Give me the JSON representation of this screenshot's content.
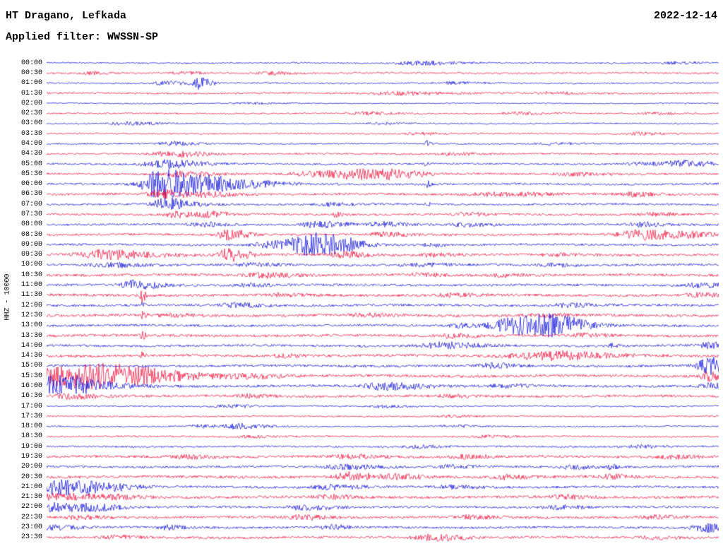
{
  "header": {
    "station": "HT Dragano, Lefkada",
    "date": "2022-12-14",
    "filter": "Applied filter: WWSSN-SP"
  },
  "y_axis": {
    "channel_label": "HHZ - 10000"
  },
  "colors": {
    "blue": "#0000dd",
    "red": "#f20030",
    "background": "#ffffff",
    "text": "#000000"
  },
  "chart_data": {
    "type": "line",
    "subtype": "helicorder-seismogram",
    "title": "HT Dragano, Lefkada",
    "date": "2022-12-14",
    "filter": "WWSSN-SP",
    "channel": "HHZ - 10000",
    "minutes_per_row": 30,
    "row_count": 48,
    "legend_position": "none",
    "grid": false,
    "rows": [
      {
        "label": "00:00",
        "color": "blue",
        "noise": 1.0,
        "events": [
          [
            0.55,
            2.5,
            6
          ],
          [
            0.93,
            1.5,
            4
          ]
        ]
      },
      {
        "label": "00:30",
        "color": "red",
        "noise": 1.1,
        "events": [
          [
            0.065,
            3,
            2
          ],
          [
            0.2,
            2,
            3
          ],
          [
            0.33,
            1.8,
            4
          ]
        ]
      },
      {
        "label": "01:00",
        "color": "blue",
        "noise": 1.0,
        "events": [
          [
            0.175,
            3,
            3
          ],
          [
            0.225,
            8,
            2
          ],
          [
            0.6,
            1.5,
            5
          ]
        ]
      },
      {
        "label": "01:30",
        "color": "red",
        "noise": 1.2,
        "events": [
          [
            0.52,
            2,
            8
          ],
          [
            0.75,
            1.5,
            5
          ]
        ]
      },
      {
        "label": "02:00",
        "color": "blue",
        "noise": 0.8,
        "events": [
          [
            0.3,
            1.2,
            4
          ]
        ]
      },
      {
        "label": "02:30",
        "color": "red",
        "noise": 1.0,
        "events": [
          [
            0.47,
            2,
            5
          ],
          [
            0.7,
            1.8,
            5
          ],
          [
            0.9,
            1.5,
            4
          ]
        ]
      },
      {
        "label": "03:00",
        "color": "blue",
        "noise": 0.9,
        "events": [
          [
            0.115,
            2.2,
            5
          ],
          [
            0.5,
            1.3,
            4
          ]
        ]
      },
      {
        "label": "03:30",
        "color": "red",
        "noise": 1.0,
        "events": [
          [
            0.55,
            1.5,
            4
          ],
          [
            0.88,
            2,
            4
          ]
        ]
      },
      {
        "label": "04:00",
        "color": "blue",
        "noise": 1.0,
        "events": [
          [
            0.185,
            2.5,
            4
          ],
          [
            0.565,
            5,
            0.6
          ],
          [
            0.75,
            1.5,
            4
          ]
        ]
      },
      {
        "label": "04:30",
        "color": "red",
        "noise": 1.2,
        "events": [
          [
            0.17,
            2.5,
            4
          ],
          [
            0.205,
            2.5,
            4
          ],
          [
            0.6,
            1.6,
            5
          ]
        ]
      },
      {
        "label": "05:00",
        "color": "blue",
        "noise": 1.2,
        "events": [
          [
            0.17,
            6,
            6
          ],
          [
            0.565,
            5,
            0.6
          ],
          [
            0.88,
            2,
            5
          ],
          [
            0.945,
            4,
            5
          ]
        ]
      },
      {
        "label": "05:30",
        "color": "red",
        "noise": 1.4,
        "events": [
          [
            0.2,
            3.5,
            5
          ],
          [
            0.4,
            3,
            8
          ],
          [
            0.44,
            3.5,
            6
          ],
          [
            0.48,
            3.5,
            6
          ],
          [
            0.52,
            3,
            5
          ],
          [
            0.78,
            2,
            5
          ]
        ]
      },
      {
        "label": "06:00",
        "color": "blue",
        "noise": 1.4,
        "events": [
          [
            0.165,
            14,
            5
          ],
          [
            0.19,
            10,
            8
          ],
          [
            0.25,
            5,
            4
          ],
          [
            0.31,
            3,
            5
          ],
          [
            0.565,
            5,
            0.6
          ]
        ]
      },
      {
        "label": "06:30",
        "color": "red",
        "noise": 1.5,
        "events": [
          [
            0.17,
            6,
            4
          ],
          [
            0.24,
            3,
            4
          ],
          [
            0.65,
            2.5,
            5
          ],
          [
            0.72,
            2,
            4
          ],
          [
            0.87,
            3,
            4
          ]
        ]
      },
      {
        "label": "07:00",
        "color": "blue",
        "noise": 1.3,
        "events": [
          [
            0.17,
            6,
            3
          ],
          [
            0.19,
            4,
            5
          ],
          [
            0.42,
            2,
            4
          ],
          [
            0.565,
            3,
            0.6
          ]
        ]
      },
      {
        "label": "07:30",
        "color": "red",
        "noise": 1.4,
        "events": [
          [
            0.19,
            4,
            3
          ],
          [
            0.24,
            4,
            3
          ],
          [
            0.43,
            3.5,
            1
          ],
          [
            0.62,
            2,
            4
          ],
          [
            0.9,
            2,
            4
          ]
        ]
      },
      {
        "label": "08:00",
        "color": "blue",
        "noise": 1.4,
        "events": [
          [
            0.23,
            3,
            4
          ],
          [
            0.4,
            4,
            5
          ],
          [
            0.5,
            3,
            4
          ],
          [
            0.62,
            2.5,
            4
          ],
          [
            0.885,
            3,
            4
          ]
        ]
      },
      {
        "label": "08:30",
        "color": "red",
        "noise": 1.5,
        "events": [
          [
            0.27,
            8,
            3
          ],
          [
            0.5,
            3,
            4
          ],
          [
            0.885,
            7,
            7
          ],
          [
            0.96,
            2,
            4
          ]
        ]
      },
      {
        "label": "09:00",
        "color": "blue",
        "noise": 1.5,
        "events": [
          [
            0.33,
            4,
            5
          ],
          [
            0.385,
            9,
            6
          ],
          [
            0.4,
            7,
            5
          ],
          [
            0.44,
            3,
            4
          ],
          [
            0.57,
            2,
            3
          ]
        ]
      },
      {
        "label": "09:30",
        "color": "red",
        "noise": 1.6,
        "events": [
          [
            0.085,
            6,
            8
          ],
          [
            0.27,
            9,
            3
          ],
          [
            0.44,
            4,
            4
          ],
          [
            0.57,
            2,
            4
          ],
          [
            0.75,
            2,
            4
          ]
        ]
      },
      {
        "label": "10:00",
        "color": "blue",
        "noise": 1.5,
        "events": [
          [
            0.09,
            3,
            5
          ],
          [
            0.3,
            2,
            5
          ],
          [
            0.55,
            2,
            5
          ],
          [
            0.75,
            2,
            4
          ]
        ]
      },
      {
        "label": "10:30",
        "color": "red",
        "noise": 1.7,
        "events": [
          [
            0.32,
            3,
            5
          ],
          [
            0.55,
            2,
            4
          ],
          [
            0.68,
            2,
            4
          ]
        ]
      },
      {
        "label": "11:00",
        "color": "blue",
        "noise": 1.6,
        "events": [
          [
            0.13,
            6,
            4
          ],
          [
            0.3,
            2,
            4
          ],
          [
            0.97,
            3,
            4
          ]
        ]
      },
      {
        "label": "11:30",
        "color": "red",
        "noise": 1.8,
        "events": [
          [
            0.142,
            10,
            0.5
          ],
          [
            0.35,
            2,
            4
          ],
          [
            0.6,
            2,
            4
          ],
          [
            0.97,
            2.5,
            4
          ]
        ]
      },
      {
        "label": "12:00",
        "color": "blue",
        "noise": 1.6,
        "events": [
          [
            0.142,
            3,
            0.5
          ],
          [
            0.28,
            3,
            4
          ],
          [
            0.77,
            2.5,
            4
          ]
        ]
      },
      {
        "label": "12:30",
        "color": "red",
        "noise": 1.8,
        "events": [
          [
            0.142,
            8,
            0.5
          ],
          [
            0.18,
            2,
            4
          ],
          [
            0.47,
            2,
            4
          ],
          [
            0.73,
            2,
            4
          ]
        ]
      },
      {
        "label": "13:00",
        "color": "blue",
        "noise": 1.6,
        "events": [
          [
            0.62,
            3,
            4
          ],
          [
            0.685,
            8,
            5
          ],
          [
            0.72,
            9,
            6
          ],
          [
            0.755,
            8,
            5
          ]
        ]
      },
      {
        "label": "13:30",
        "color": "red",
        "noise": 1.8,
        "events": [
          [
            0.142,
            6,
            0.5
          ],
          [
            0.6,
            2.5,
            4
          ],
          [
            0.8,
            2,
            4
          ]
        ]
      },
      {
        "label": "14:00",
        "color": "blue",
        "noise": 1.6,
        "events": [
          [
            0.585,
            4,
            6
          ],
          [
            0.84,
            3.5,
            1
          ],
          [
            0.985,
            4,
            3
          ]
        ]
      },
      {
        "label": "14:30",
        "color": "red",
        "noise": 1.8,
        "events": [
          [
            0.142,
            4,
            0.5
          ],
          [
            0.35,
            2,
            4
          ],
          [
            0.72,
            3,
            10
          ],
          [
            0.76,
            3,
            8
          ]
        ]
      },
      {
        "label": "15:00",
        "color": "blue",
        "noise": 1.7,
        "events": [
          [
            0.66,
            3,
            4
          ],
          [
            0.985,
            12,
            4
          ]
        ]
      },
      {
        "label": "15:30",
        "color": "red",
        "noise": 1.8,
        "events": [
          [
            0.02,
            10,
            10
          ],
          [
            0.06,
            7,
            12
          ],
          [
            0.12,
            4,
            14
          ],
          [
            0.3,
            2,
            5
          ],
          [
            0.985,
            6,
            3
          ]
        ]
      },
      {
        "label": "16:00",
        "color": "blue",
        "noise": 1.7,
        "events": [
          [
            0.008,
            12,
            6
          ],
          [
            0.05,
            4,
            8
          ],
          [
            0.5,
            5,
            6
          ],
          [
            0.68,
            2,
            4
          ],
          [
            0.985,
            4,
            3
          ]
        ]
      },
      {
        "label": "16:30",
        "color": "red",
        "noise": 1.6,
        "events": [
          [
            0.03,
            3,
            6
          ],
          [
            0.3,
            2,
            4
          ],
          [
            0.6,
            1.8,
            4
          ]
        ]
      },
      {
        "label": "17:00",
        "color": "blue",
        "noise": 1.0,
        "events": [
          [
            0.27,
            2,
            4
          ],
          [
            0.5,
            1.5,
            4
          ]
        ]
      },
      {
        "label": "17:30",
        "color": "red",
        "noise": 1.0,
        "events": [
          [
            0.6,
            1.5,
            4
          ]
        ]
      },
      {
        "label": "18:00",
        "color": "blue",
        "noise": 1.0,
        "events": [
          [
            0.225,
            2,
            3
          ],
          [
            0.285,
            4,
            4
          ],
          [
            0.6,
            1.5,
            4
          ]
        ]
      },
      {
        "label": "18:30",
        "color": "red",
        "noise": 1.1,
        "events": [
          [
            0.3,
            1.5,
            4
          ],
          [
            0.65,
            1.5,
            4
          ]
        ]
      },
      {
        "label": "19:00",
        "color": "blue",
        "noise": 1.2,
        "events": [
          [
            0.55,
            2,
            4
          ],
          [
            0.88,
            2.5,
            3
          ]
        ]
      },
      {
        "label": "19:30",
        "color": "red",
        "noise": 1.7,
        "events": [
          [
            0.2,
            2,
            5
          ],
          [
            0.45,
            2.5,
            5
          ],
          [
            0.62,
            2.5,
            4
          ],
          [
            0.93,
            2,
            4
          ]
        ]
      },
      {
        "label": "20:00",
        "color": "blue",
        "noise": 1.5,
        "events": [
          [
            0.44,
            3,
            6
          ],
          [
            0.6,
            2,
            4
          ],
          [
            0.78,
            2.5,
            4
          ],
          [
            0.84,
            4,
            1
          ]
        ]
      },
      {
        "label": "20:30",
        "color": "red",
        "noise": 1.8,
        "events": [
          [
            0.45,
            6,
            4
          ],
          [
            0.52,
            3,
            4
          ],
          [
            0.68,
            3,
            4
          ],
          [
            0.84,
            3,
            3
          ]
        ]
      },
      {
        "label": "21:00",
        "color": "blue",
        "noise": 1.6,
        "events": [
          [
            0.012,
            10,
            8
          ],
          [
            0.07,
            3,
            5
          ],
          [
            0.42,
            3,
            5
          ],
          [
            0.6,
            2,
            4
          ]
        ]
      },
      {
        "label": "21:30",
        "color": "red",
        "noise": 1.8,
        "events": [
          [
            0.015,
            4,
            6
          ],
          [
            0.1,
            2.5,
            4
          ],
          [
            0.42,
            2.5,
            4
          ],
          [
            0.77,
            2.5,
            4
          ]
        ]
      },
      {
        "label": "22:00",
        "color": "blue",
        "noise": 1.5,
        "events": [
          [
            0.012,
            6,
            5
          ],
          [
            0.07,
            4,
            4
          ],
          [
            0.38,
            3,
            5
          ],
          [
            0.76,
            2.5,
            4
          ]
        ]
      },
      {
        "label": "22:30",
        "color": "red",
        "noise": 1.7,
        "events": [
          [
            0.05,
            2.5,
            4
          ],
          [
            0.38,
            3,
            4
          ],
          [
            0.63,
            2,
            4
          ],
          [
            0.9,
            2,
            4
          ]
        ]
      },
      {
        "label": "23:00",
        "color": "blue",
        "noise": 1.5,
        "events": [
          [
            0.012,
            3,
            4
          ],
          [
            0.18,
            3,
            3
          ],
          [
            0.42,
            3,
            3
          ],
          [
            0.98,
            6,
            4
          ]
        ]
      },
      {
        "label": "23:30",
        "color": "red",
        "noise": 1.6,
        "events": [
          [
            0.1,
            2,
            4
          ],
          [
            0.57,
            4,
            5
          ],
          [
            0.9,
            2,
            4
          ]
        ]
      }
    ]
  }
}
